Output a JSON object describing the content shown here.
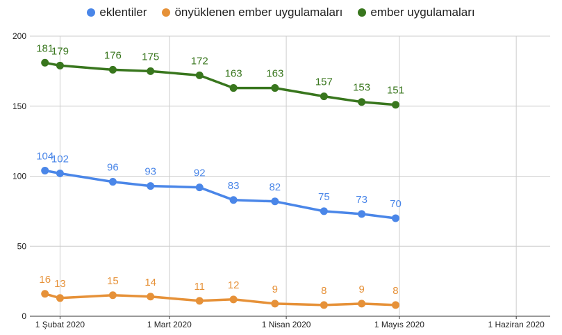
{
  "chart_data": {
    "type": "line",
    "title": "",
    "xlabel": "",
    "ylabel": "",
    "ylim": [
      0,
      200
    ],
    "y_ticks": [
      "0",
      "50",
      "100",
      "150",
      "200"
    ],
    "x_ticks": [
      {
        "date": "2020-02-01",
        "label": "1 Şubat 2020"
      },
      {
        "date": "2020-03-01",
        "label": "1 Mart 2020"
      },
      {
        "date": "2020-04-01",
        "label": "1 Nisan 2020"
      },
      {
        "date": "2020-05-01",
        "label": "1 Mayıs 2020"
      },
      {
        "date": "2020-06-01",
        "label": "1 Haziran 2020"
      }
    ],
    "x": [
      "2020-01-28",
      "2020-02-01",
      "2020-02-15",
      "2020-02-25",
      "2020-03-09",
      "2020-03-18",
      "2020-03-29",
      "2020-04-11",
      "2020-04-21",
      "2020-04-30"
    ],
    "legend_position": "top",
    "grid": true,
    "series": [
      {
        "name": "eklentiler",
        "color": "#4a86e8",
        "values": [
          104,
          102,
          96,
          93,
          92,
          83,
          82,
          75,
          73,
          70
        ]
      },
      {
        "name": "önyüklenen ember uygulamaları",
        "color": "#e69138",
        "values": [
          16,
          13,
          15,
          14,
          11,
          12,
          9,
          8,
          9,
          8
        ]
      },
      {
        "name": "ember uygulamaları",
        "color": "#38761d",
        "values": [
          181,
          179,
          176,
          175,
          172,
          163,
          163,
          157,
          153,
          151
        ]
      }
    ]
  }
}
